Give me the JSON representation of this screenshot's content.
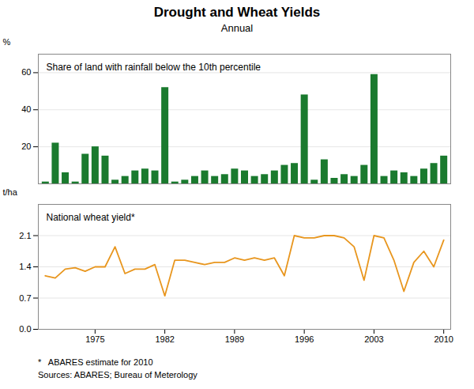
{
  "chart_data": [
    {
      "type": "bar",
      "title": "Drought and Wheat Yields",
      "subtitle": "Annual",
      "annotations": [
        "Share of land with rainfall below the 10th percentile"
      ],
      "ylabel": "%",
      "x": [
        1970,
        1971,
        1972,
        1973,
        1974,
        1975,
        1976,
        1977,
        1978,
        1979,
        1980,
        1981,
        1982,
        1983,
        1984,
        1985,
        1986,
        1987,
        1988,
        1989,
        1990,
        1991,
        1992,
        1993,
        1994,
        1995,
        1996,
        1997,
        1998,
        1999,
        2000,
        2001,
        2002,
        2003,
        2004,
        2005,
        2006,
        2007,
        2008,
        2009,
        2010
      ],
      "values": [
        1,
        22,
        6,
        1,
        16,
        20,
        15,
        2,
        4,
        7,
        8,
        7,
        52,
        1,
        2,
        4,
        7,
        4,
        5,
        8,
        7,
        4,
        5,
        7,
        10,
        11,
        48,
        2,
        13,
        3,
        5,
        4,
        10,
        59,
        4,
        7,
        6,
        4,
        8,
        11,
        15
      ],
      "color": "#1a7a2e",
      "xlim": [
        1969.3,
        2010.7
      ],
      "ylim": [
        0,
        70
      ],
      "yticks": [
        20,
        40,
        60
      ],
      "grid": true,
      "tick_labels": "y"
    },
    {
      "type": "line",
      "annotations": [
        "National wheat yield*"
      ],
      "ylabel": "t/ha",
      "caption": [
        "*   ABARES estimate for 2010",
        "Sources: ABARES; Bureau of Meterology"
      ],
      "x": [
        1970,
        1971,
        1972,
        1973,
        1974,
        1975,
        1976,
        1977,
        1978,
        1979,
        1980,
        1981,
        1982,
        1983,
        1984,
        1985,
        1986,
        1987,
        1988,
        1989,
        1990,
        1991,
        1992,
        1993,
        1994,
        1995,
        1996,
        1997,
        1998,
        1999,
        2000,
        2001,
        2002,
        2003,
        2004,
        2005,
        2006,
        2007,
        2008,
        2009,
        2010
      ],
      "values": [
        1.2,
        1.15,
        1.35,
        1.38,
        1.3,
        1.4,
        1.4,
        1.85,
        1.25,
        1.35,
        1.35,
        1.45,
        0.75,
        1.55,
        1.55,
        1.5,
        1.45,
        1.5,
        1.5,
        1.6,
        1.55,
        1.6,
        1.55,
        1.6,
        1.2,
        2.1,
        2.05,
        2.05,
        2.1,
        2.1,
        2.05,
        1.85,
        1.1,
        2.1,
        2.05,
        1.55,
        0.85,
        1.5,
        1.75,
        1.4,
        2.0
      ],
      "color": "#e8961e",
      "xlim": [
        1969.3,
        2010.7
      ],
      "xticks": [
        1975,
        1982,
        1989,
        1996,
        2003,
        2010
      ],
      "ylim": [
        0.0,
        2.8
      ],
      "yticks": [
        {
          "value": 0.0,
          "label": "0.0"
        },
        0.7,
        1.4,
        2.1
      ],
      "grid": true
    }
  ]
}
